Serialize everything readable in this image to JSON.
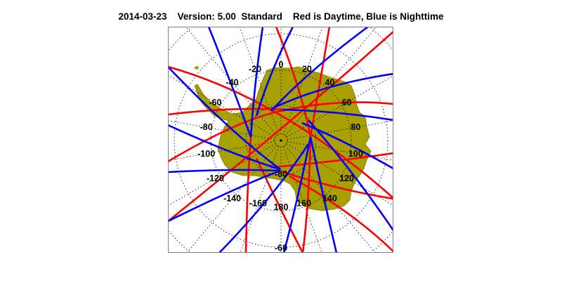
{
  "title": {
    "date": "2014-03-23",
    "version": "Version: 5.00",
    "mode": "Standard",
    "legend": "Red is Daytime, Blue is Nighttime"
  },
  "map": {
    "projection": "south polar stereographic",
    "region": "Antarctica",
    "colors": {
      "land": "#a8a000",
      "daytime_track": "#ff0000",
      "nighttime_track": "#0000ff",
      "frame": "#808080"
    },
    "longitude_labels": [
      "0",
      "20",
      "40",
      "60",
      "80",
      "100",
      "120",
      "140",
      "160",
      "180",
      "-160",
      "-140",
      "-120",
      "-100",
      "-80",
      "-60",
      "-40",
      "-20"
    ],
    "latitude_labels": [
      "-80",
      "-60"
    ]
  }
}
